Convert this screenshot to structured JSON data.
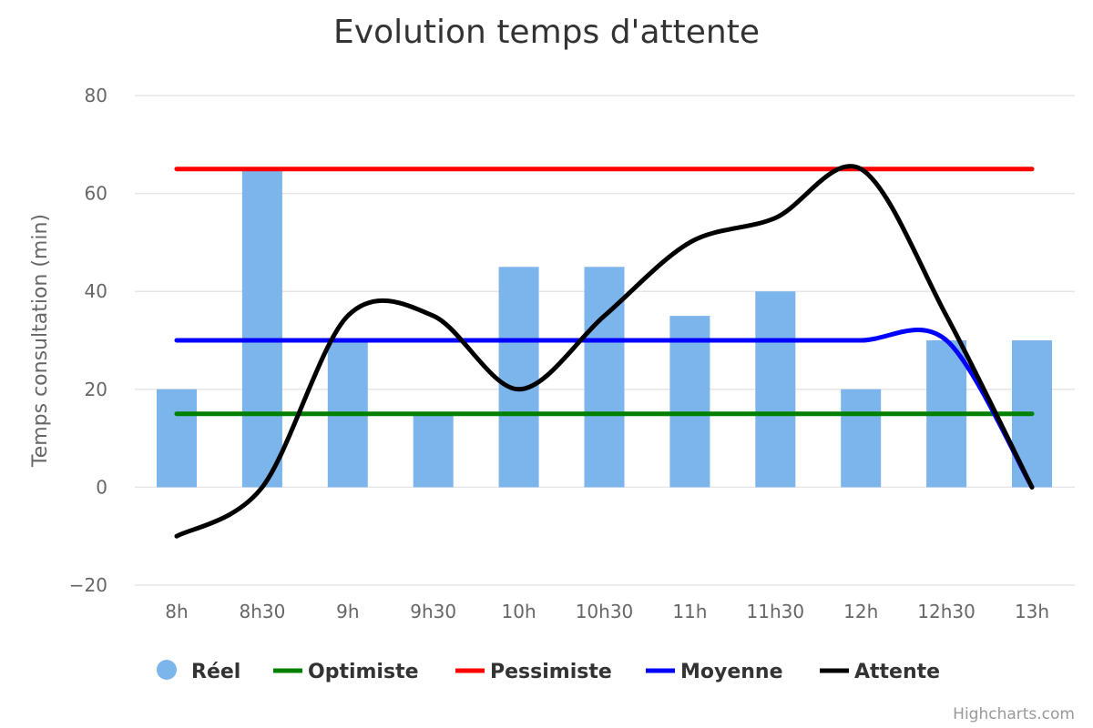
{
  "chart_data": {
    "type": "bar",
    "title": "Evolution temps d'attente",
    "ylabel": "Temps consultation (min)",
    "xlabel": "",
    "categories": [
      "8h",
      "8h30",
      "9h",
      "9h30",
      "10h",
      "10h30",
      "11h",
      "11h30",
      "12h",
      "12h30",
      "13h"
    ],
    "ylim": [
      -20,
      80
    ],
    "yticks": [
      -20,
      0,
      20,
      40,
      60,
      80
    ],
    "ytick_labels": [
      "−20",
      "0",
      "20",
      "40",
      "60",
      "80"
    ],
    "grid": true,
    "legend_position": "bottom",
    "series": [
      {
        "name": "Réel",
        "type": "column",
        "color": "#7cb5ec",
        "values": [
          20,
          65,
          30,
          15,
          45,
          45,
          35,
          40,
          20,
          30,
          30
        ]
      },
      {
        "name": "Optimiste",
        "type": "line",
        "color": "#008000",
        "values": [
          15,
          15,
          15,
          15,
          15,
          15,
          15,
          15,
          15,
          15,
          15
        ]
      },
      {
        "name": "Pessimiste",
        "type": "line",
        "color": "#ff0000",
        "values": [
          65,
          65,
          65,
          65,
          65,
          65,
          65,
          65,
          65,
          65,
          65
        ]
      },
      {
        "name": "Moyenne",
        "type": "spline",
        "color": "#0000ff",
        "values": [
          30,
          30,
          30,
          30,
          30,
          30,
          30,
          30,
          30,
          30,
          0
        ]
      },
      {
        "name": "Attente",
        "type": "spline",
        "color": "#000000",
        "values": [
          -10,
          0,
          35,
          35,
          20,
          35,
          50,
          55,
          65,
          35,
          0
        ]
      }
    ]
  },
  "credits": "Highcharts.com"
}
